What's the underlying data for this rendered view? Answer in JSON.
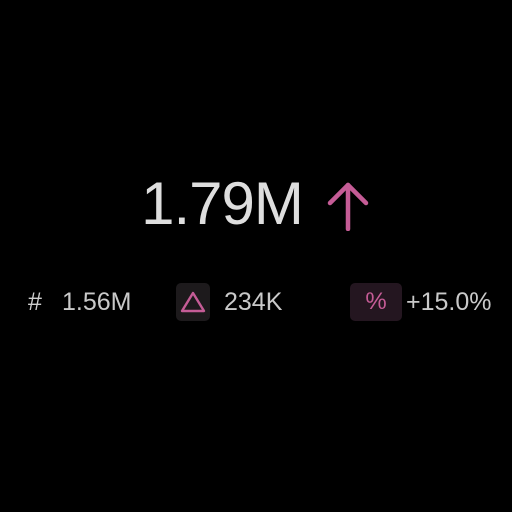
{
  "kpi": {
    "value": "1.79M",
    "trend_direction": "up",
    "trend_icon": "arrow-up-icon",
    "accent_color": "#c55c96"
  },
  "stats": {
    "count": {
      "icon": "hash-icon",
      "glyph": "#",
      "value": "1.56M"
    },
    "delta": {
      "icon": "triangle-delta-icon",
      "value": "234K"
    },
    "percent": {
      "icon": "percent-icon",
      "glyph": "%",
      "value": "+15.0%"
    }
  }
}
